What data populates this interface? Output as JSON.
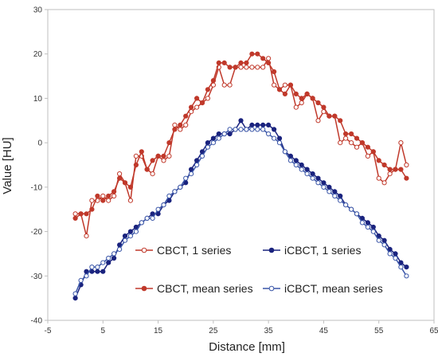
{
  "chart_data": {
    "type": "line",
    "xlabel": "Distance [mm]",
    "ylabel": "Value [HU]",
    "xlim": [
      -5,
      65
    ],
    "ylim": [
      -40,
      30
    ],
    "xticks": [
      -5,
      5,
      15,
      25,
      35,
      45,
      55,
      65
    ],
    "yticks": [
      -40,
      -30,
      -20,
      -10,
      0,
      10,
      20,
      30
    ],
    "grid": false,
    "legend_placement": "bottom-inside",
    "series": [
      {
        "name": "CBCT, 1 series",
        "color": "#c0392b",
        "marker": "open-circle",
        "x": [
          0,
          1,
          2,
          3,
          4,
          5,
          6,
          7,
          8,
          9,
          10,
          11,
          12,
          13,
          14,
          15,
          16,
          17,
          18,
          19,
          20,
          21,
          22,
          23,
          24,
          25,
          26,
          27,
          28,
          29,
          30,
          31,
          32,
          33,
          34,
          35,
          36,
          37,
          38,
          39,
          40,
          41,
          42,
          43,
          44,
          45,
          46,
          47,
          48,
          49,
          50,
          51,
          52,
          53,
          54,
          55,
          56,
          57,
          58,
          59,
          60
        ],
        "y": [
          -16,
          -16,
          -21,
          -13,
          -13,
          -12,
          -13,
          -12,
          -7,
          -9,
          -13,
          -3,
          -3,
          -6,
          -7,
          -3,
          -4,
          -3,
          4,
          3,
          4,
          7,
          8,
          9,
          10,
          13,
          17,
          13,
          13,
          17,
          17,
          17,
          17,
          17,
          17,
          19,
          13,
          12,
          13,
          13,
          8,
          9,
          11,
          10,
          5,
          7,
          6,
          6,
          0,
          1,
          0,
          -1,
          0,
          -3,
          -2,
          -8,
          -9,
          -7,
          -6,
          0,
          -5
        ]
      },
      {
        "name": "CBCT, mean series",
        "color": "#c0392b",
        "marker": "filled-circle",
        "x": [
          0,
          1,
          2,
          3,
          4,
          5,
          6,
          7,
          8,
          9,
          10,
          11,
          12,
          13,
          14,
          15,
          16,
          17,
          18,
          19,
          20,
          21,
          22,
          23,
          24,
          25,
          26,
          27,
          28,
          29,
          30,
          31,
          32,
          33,
          34,
          35,
          36,
          37,
          38,
          39,
          40,
          41,
          42,
          43,
          44,
          45,
          46,
          47,
          48,
          49,
          50,
          51,
          52,
          53,
          54,
          55,
          56,
          57,
          58,
          59,
          60
        ],
        "y": [
          -17,
          -16,
          -16,
          -15,
          -12,
          -13,
          -12,
          -11,
          -8,
          -9,
          -10,
          -5,
          -2,
          -6,
          -4,
          -3,
          -3,
          0,
          3,
          4,
          6,
          8,
          10,
          9,
          12,
          14,
          18,
          18,
          17,
          17,
          18,
          18,
          20,
          20,
          19,
          18,
          16,
          12,
          11,
          13,
          11,
          10,
          11,
          10,
          9,
          8,
          6,
          6,
          5,
          2,
          2,
          1,
          0,
          -1,
          -2,
          -4,
          -5,
          -6,
          -6,
          -6,
          -8
        ]
      },
      {
        "name": "iCBCT, 1 series",
        "color": "#1a237e",
        "marker": "filled-circle",
        "x": [
          0,
          1,
          2,
          3,
          4,
          5,
          6,
          7,
          8,
          9,
          10,
          11,
          12,
          13,
          14,
          15,
          16,
          17,
          18,
          19,
          20,
          21,
          22,
          23,
          24,
          25,
          26,
          27,
          28,
          29,
          30,
          31,
          32,
          33,
          34,
          35,
          36,
          37,
          38,
          39,
          40,
          41,
          42,
          43,
          44,
          45,
          46,
          47,
          48,
          49,
          50,
          51,
          52,
          53,
          54,
          55,
          56,
          57,
          58,
          59,
          60
        ],
        "y": [
          -35,
          -32,
          -29,
          -29,
          -29,
          -29,
          -27,
          -26,
          -23,
          -21,
          -20,
          -19,
          -18,
          -17,
          -16,
          -16,
          -14,
          -13,
          -11,
          -10,
          -9,
          -6,
          -4,
          -2,
          0,
          1,
          2,
          2,
          2,
          3,
          5,
          3,
          4,
          4,
          4,
          4,
          3,
          1,
          -2,
          -3,
          -4,
          -5,
          -6,
          -7,
          -8,
          -9,
          -10,
          -11,
          -12,
          -14,
          -15,
          -16,
          -17,
          -18,
          -19,
          -21,
          -22,
          -24,
          -25,
          -27,
          -28
        ]
      },
      {
        "name": "iCBCT, mean series",
        "color": "#3a56a8",
        "marker": "open-circle",
        "x": [
          0,
          1,
          2,
          3,
          4,
          5,
          6,
          7,
          8,
          9,
          10,
          11,
          12,
          13,
          14,
          15,
          16,
          17,
          18,
          19,
          20,
          21,
          22,
          23,
          24,
          25,
          26,
          27,
          28,
          29,
          30,
          31,
          32,
          33,
          34,
          35,
          36,
          37,
          38,
          39,
          40,
          41,
          42,
          43,
          44,
          45,
          46,
          47,
          48,
          49,
          50,
          51,
          52,
          53,
          54,
          55,
          56,
          57,
          58,
          59,
          60
        ],
        "y": [
          -34,
          -31,
          -30,
          -28,
          -28,
          -27,
          -26,
          -25,
          -24,
          -22,
          -21,
          -20,
          -18,
          -17,
          -17,
          -15,
          -14,
          -12,
          -11,
          -10,
          -8,
          -7,
          -5,
          -3,
          -1,
          0,
          1,
          2,
          3,
          3,
          3,
          3,
          3,
          3,
          3,
          2,
          1,
          0,
          -2,
          -4,
          -5,
          -6,
          -7,
          -8,
          -9,
          -10,
          -11,
          -12,
          -13,
          -14,
          -15,
          -16,
          -18,
          -19,
          -20,
          -22,
          -23,
          -25,
          -26,
          -28,
          -30
        ]
      }
    ]
  }
}
